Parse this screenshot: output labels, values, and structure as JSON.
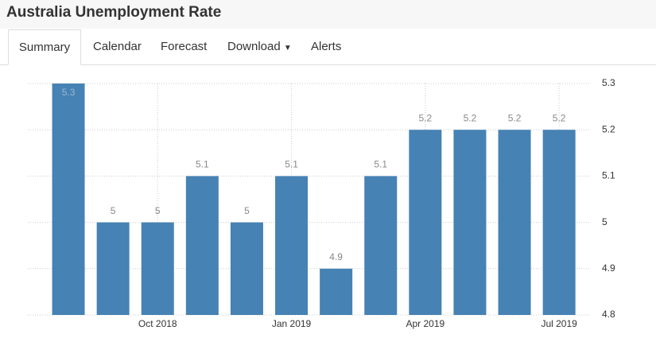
{
  "header": {
    "title": "Australia Unemployment Rate"
  },
  "tabs": [
    "Summary",
    "Calendar",
    "Forecast",
    "Download",
    "Alerts"
  ],
  "chart_data": {
    "type": "bar",
    "categories": [
      null,
      null,
      "Oct 2018",
      null,
      null,
      "Jan 2019",
      null,
      null,
      "Apr 2019",
      null,
      null,
      "Jul 2019"
    ],
    "values": [
      5.3,
      5,
      5,
      5.1,
      5,
      5.1,
      4.9,
      5.1,
      5.2,
      5.2,
      5.2,
      5.2
    ],
    "color": "#4682b4",
    "ylim": [
      4.8,
      5.3
    ],
    "yticks": [
      4.8,
      4.9,
      5,
      5.1,
      5.2,
      5.3
    ],
    "grid": true
  }
}
